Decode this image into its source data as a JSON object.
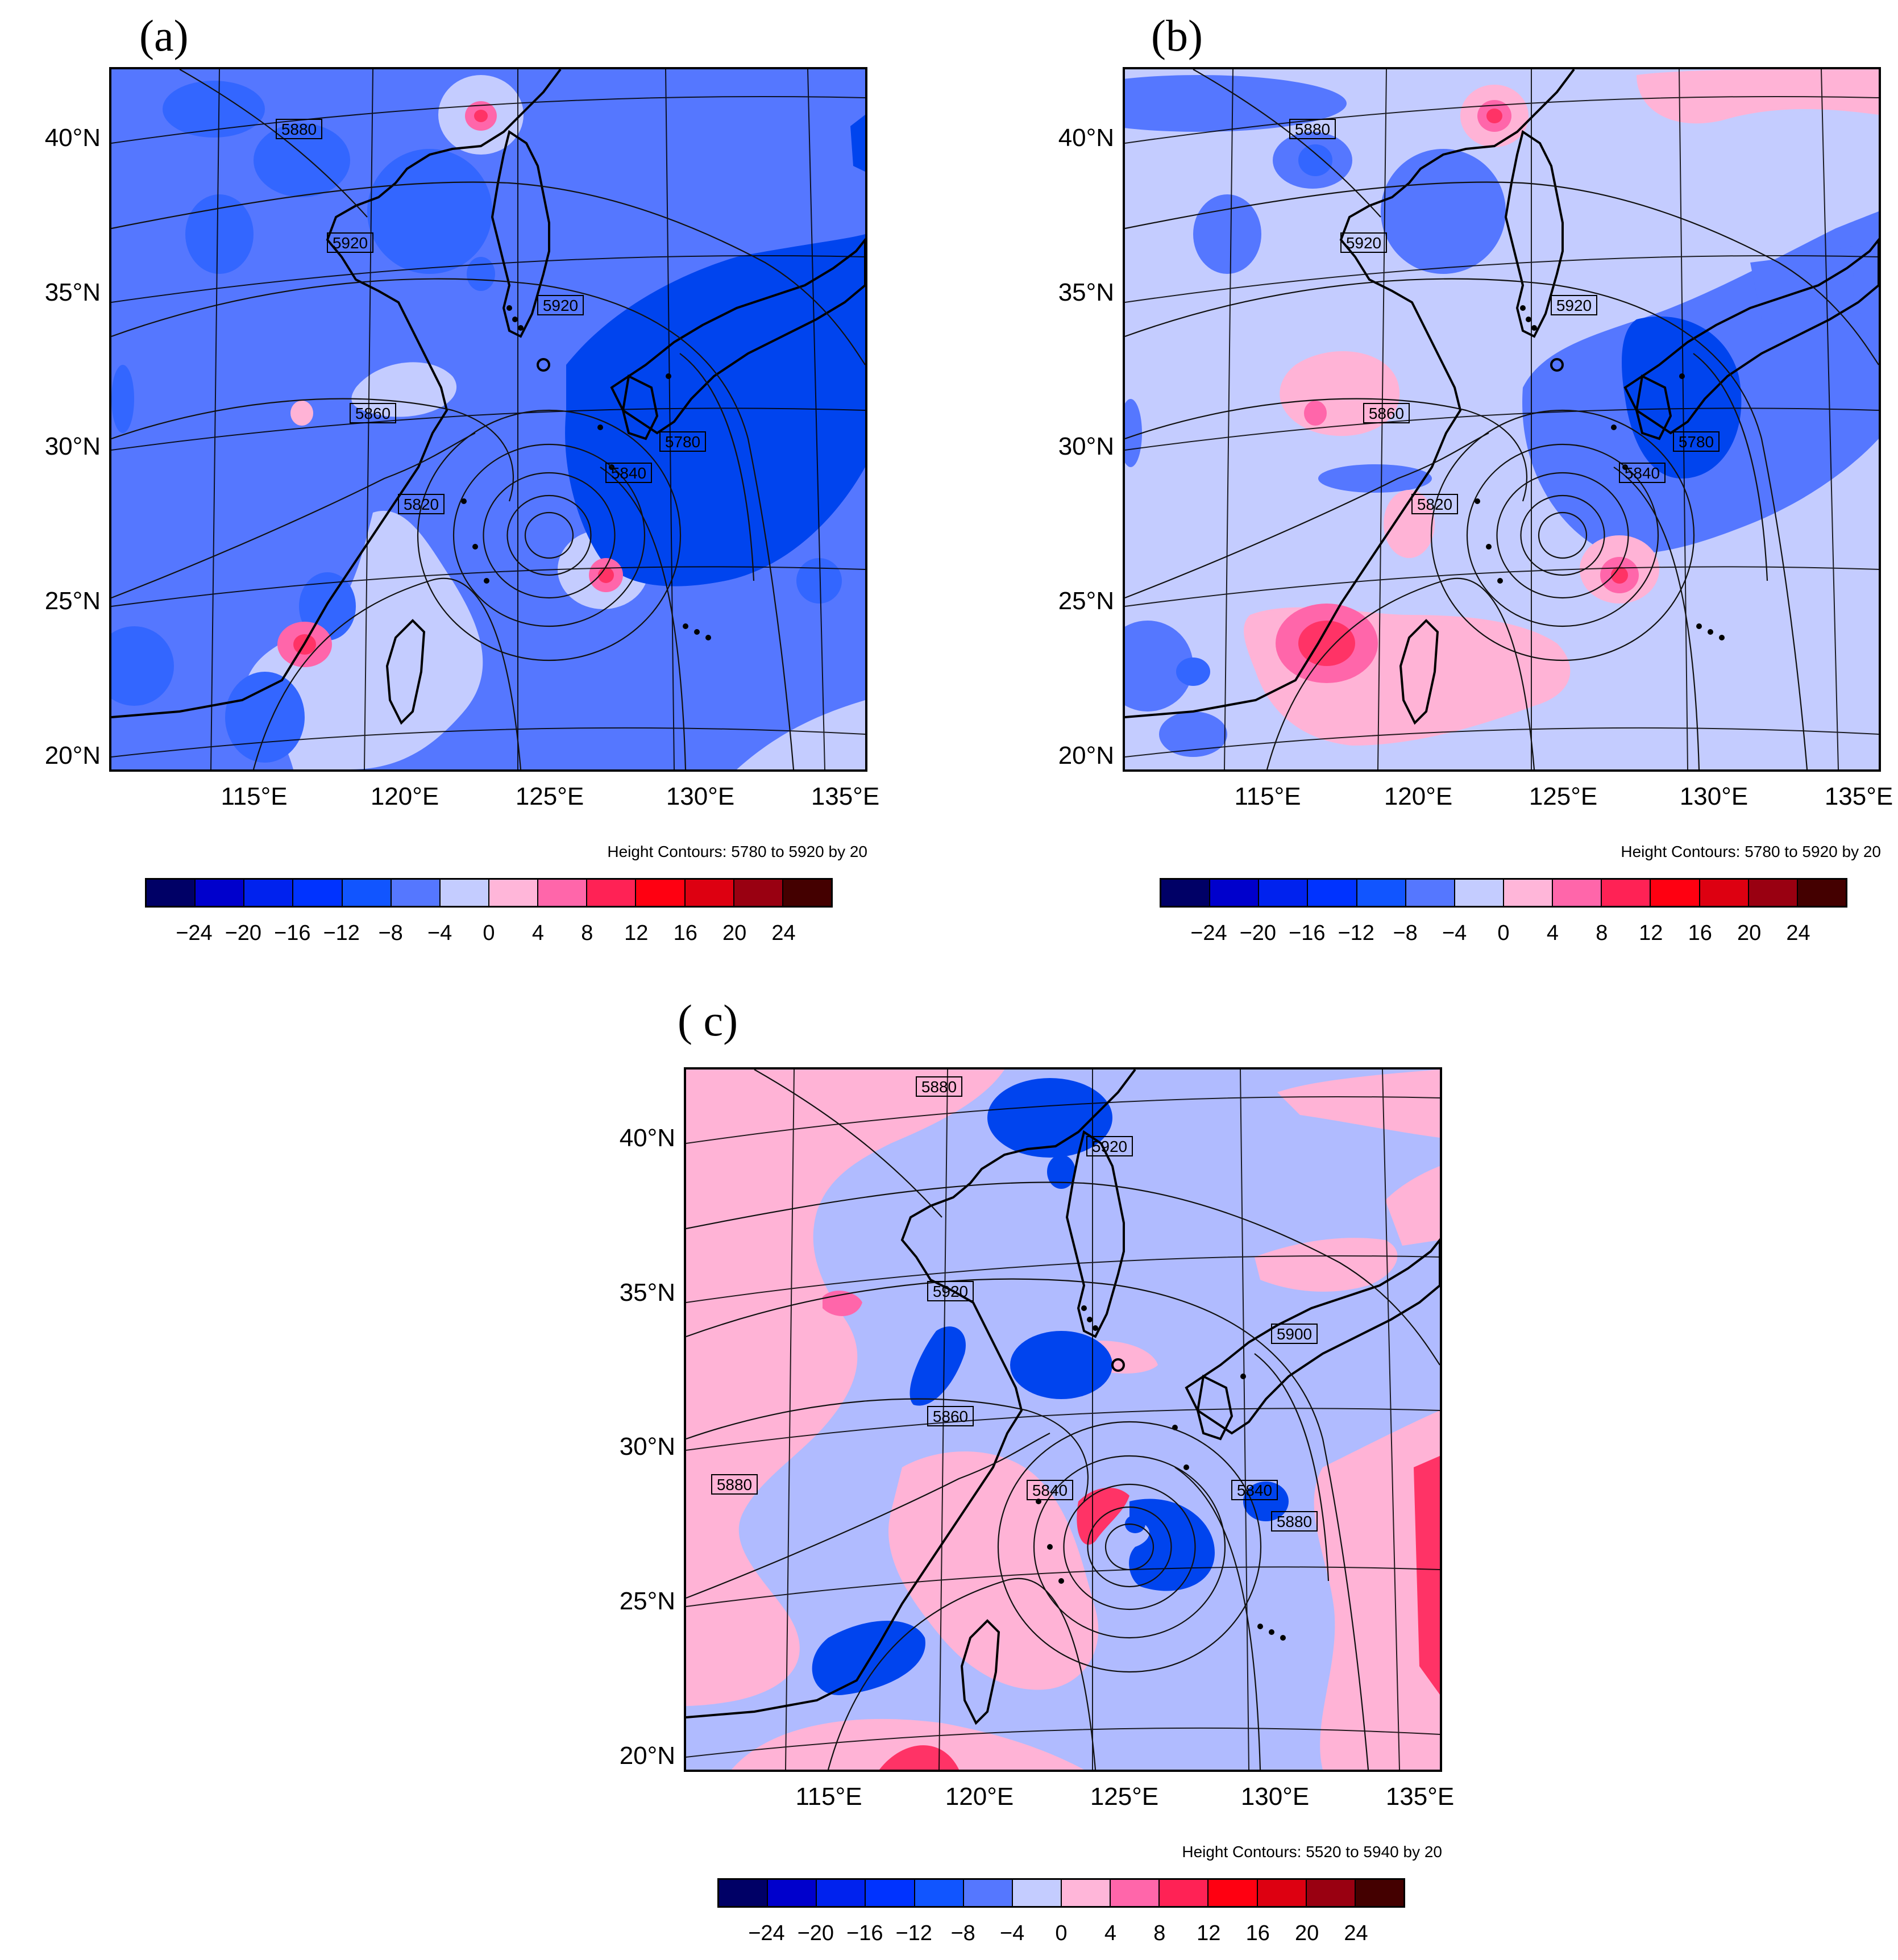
{
  "panels": [
    {
      "id": "a",
      "label": "(a)",
      "caption": "Height Contours: 5780 to 5920 by 20",
      "contour_labels": [
        "5880",
        "5920",
        "5920",
        "5860",
        "5780",
        "5840",
        "5820"
      ]
    },
    {
      "id": "b",
      "label": "(b)",
      "caption": "Height Contours: 5780 to 5920 by 20",
      "contour_labels": [
        "5880",
        "5920",
        "5920",
        "5860",
        "5780",
        "5840",
        "5820"
      ]
    },
    {
      "id": "c",
      "label": "( c)",
      "caption": "Height Contours: 5520 to 5940 by 20",
      "contour_labels": [
        "5880",
        "5920",
        "5920",
        "5900",
        "5860",
        "5840",
        "5840",
        "5880",
        "5880"
      ]
    }
  ],
  "axes": {
    "lat_labels": [
      "40°N",
      "35°N",
      "30°N",
      "25°N",
      "20°N"
    ],
    "lon_labels": [
      "115°E",
      "120°E",
      "125°E",
      "130°E",
      "135°E"
    ]
  },
  "colorbar": {
    "colors": [
      "#000066",
      "#0000cc",
      "#0022ee",
      "#0033ff",
      "#1155ff",
      "#5577ff",
      "#c4ccff",
      "#ffb6d9",
      "#ff66aa",
      "#ff2255",
      "#ff0011",
      "#dd0011",
      "#990011",
      "#440000"
    ],
    "tick_labels": [
      "−24",
      "−20",
      "−16",
      "−12",
      "−8",
      "−4",
      "0",
      "4",
      "8",
      "12",
      "16",
      "20",
      "24"
    ]
  },
  "fill_colors": {
    "deep_blue": "#0044ee",
    "mid_blue": "#3366ff",
    "light_blue": "#5577ff",
    "pale_blue": "#c4ccff",
    "pale_blue_c": "#b0bbff",
    "light_pink": "#ffb3d6",
    "pink": "#ff66aa",
    "red_pink": "#ff3366"
  }
}
